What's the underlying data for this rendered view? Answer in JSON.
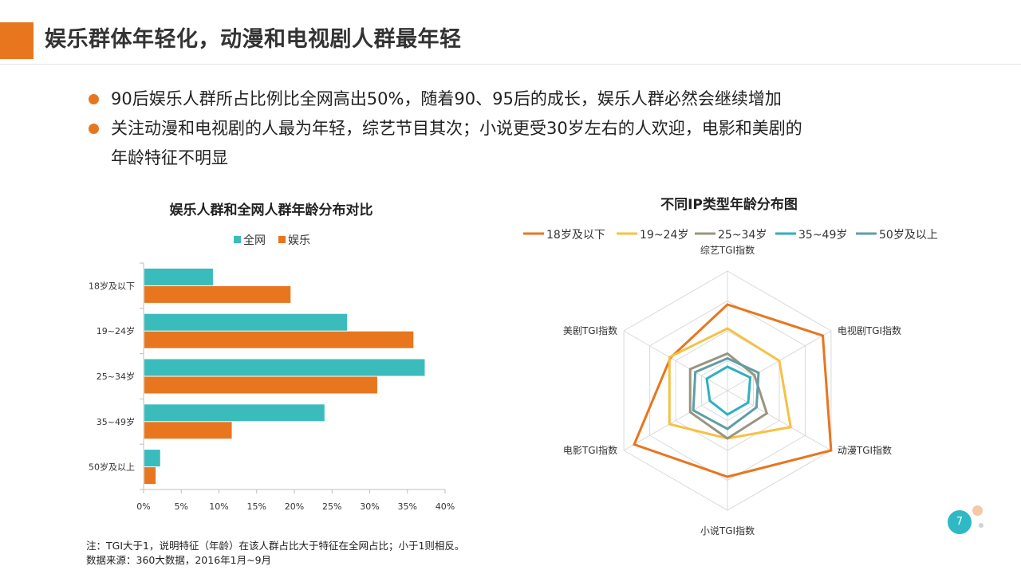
{
  "header": {
    "title": "娱乐群体年轻化，动漫和电视剧人群最年轻",
    "accent_color": "#e8761e"
  },
  "bullets": [
    "90后娱乐人群所占比例比全网高出50%，随着90、95后的成长，娱乐人群必然会继续增加",
    "关注动漫和电视剧的人最为年轻，综艺节目其次；小说更受30岁左右的人欢迎，电影和美剧的",
    "年龄特征不明显"
  ],
  "chart_data": [
    {
      "type": "bar",
      "orientation": "horizontal",
      "title": "娱乐人群和全网人群年龄分布对比",
      "categories": [
        "18岁及以下",
        "19~24岁",
        "25~34岁",
        "35~49岁",
        "50岁及以上"
      ],
      "series": [
        {
          "name": "全网",
          "color": "#3bbcbc",
          "values": [
            9.2,
            27.0,
            37.3,
            24.0,
            2.2
          ]
        },
        {
          "name": "娱乐",
          "color": "#e8761e",
          "values": [
            19.5,
            35.8,
            31.0,
            11.7,
            1.6
          ]
        }
      ],
      "x_ticks": [
        "0%",
        "5%",
        "10%",
        "15%",
        "20%",
        "25%",
        "30%",
        "35%",
        "40%"
      ],
      "xlim": [
        0,
        40
      ],
      "legend_position": "top",
      "grid": false
    },
    {
      "type": "radar",
      "title": "不同IP类型年龄分布图",
      "axes": [
        "综艺TGI指数",
        "电视剧TGI指数",
        "动漫TGI指数",
        "小说TGI指数",
        "电影TGI指数",
        "美剧TGI指数"
      ],
      "rmax": 1.0,
      "rings": 4,
      "series": [
        {
          "name": "18岁及以下",
          "color": "#e8761e",
          "values": [
            0.72,
            0.92,
            1.0,
            0.72,
            0.9,
            0.55
          ]
        },
        {
          "name": "19~24岁",
          "color": "#f6c144",
          "values": [
            0.52,
            0.5,
            0.61,
            0.4,
            0.56,
            0.56
          ]
        },
        {
          "name": "25~34岁",
          "color": "#9a9480",
          "values": [
            0.31,
            0.26,
            0.38,
            0.4,
            0.36,
            0.36
          ]
        },
        {
          "name": "35~49岁",
          "color": "#2eb0bf",
          "values": [
            0.2,
            0.22,
            0.2,
            0.2,
            0.17,
            0.2
          ]
        },
        {
          "name": "50岁及以上",
          "color": "#5e9ea6",
          "values": [
            0.27,
            0.3,
            0.28,
            0.32,
            0.33,
            0.31
          ]
        }
      ],
      "legend_position": "top"
    }
  ],
  "footnote": {
    "line1": "注：TGI大于1，说明特征（年龄）在该人群占比大于特征在全网占比；小于1则相反。",
    "line2": "数据来源：360大数据，2016年1月~9月"
  },
  "page_number": "7"
}
